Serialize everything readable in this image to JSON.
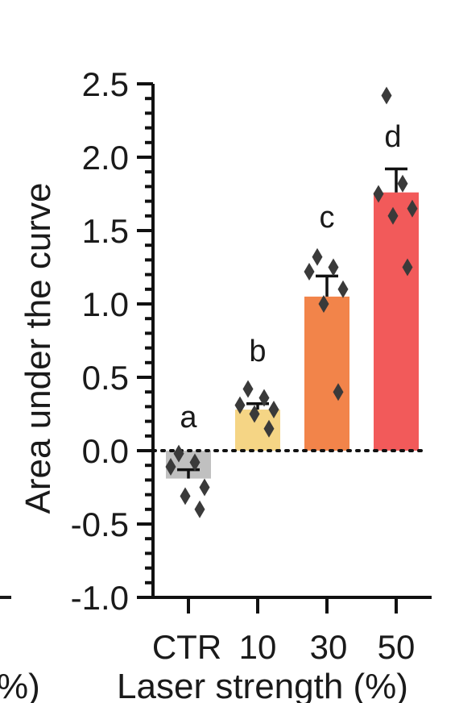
{
  "chart_data": {
    "type": "bar",
    "title": "",
    "xlabel": "Laser strength (%)",
    "ylabel": "Area under the curve",
    "categories": [
      "CTR",
      "10",
      "30",
      "50"
    ],
    "values": [
      -0.19,
      0.28,
      1.05,
      1.76
    ],
    "errors": [
      0.06,
      0.04,
      0.14,
      0.16
    ],
    "significance_letters": [
      "a",
      "b",
      "c",
      "d"
    ],
    "points": [
      [
        -0.02,
        -0.08,
        -0.11,
        -0.25,
        -0.31,
        -0.4
      ],
      [
        0.42,
        0.36,
        0.31,
        0.28,
        0.25,
        0.15
      ],
      [
        1.32,
        1.25,
        1.22,
        1.1,
        1.0,
        0.4
      ],
      [
        2.42,
        1.82,
        1.75,
        1.65,
        1.6,
        1.25
      ]
    ],
    "colors": [
      "#c0c0c0",
      "#f5d585",
      "#f2844a",
      "#f25a5a"
    ],
    "point_color": "#3a3a3a",
    "ylim": [
      -1.0,
      2.5
    ],
    "yticks": [
      "-1.0",
      "-0.5",
      "0.0",
      "0.5",
      "1.0",
      "1.5",
      "2.0",
      "2.5"
    ],
    "reference_line": 0.0,
    "legend": "none",
    "grid": false
  },
  "cropped_left": {
    "xlabel_fragment": "%)"
  }
}
